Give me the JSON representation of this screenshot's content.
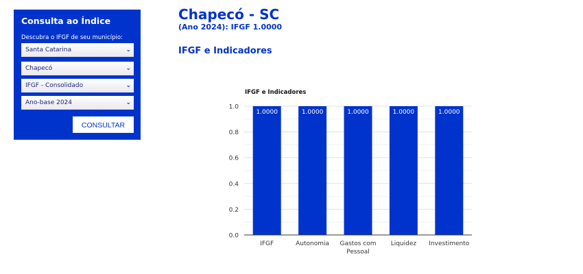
{
  "sidebar": {
    "title": "Consulta ao Índice",
    "label": "Descubra o IFGF de seu município:",
    "selects": [
      "Santa Catarina",
      "Chapecó",
      "IFGF - Consolidado",
      "Ano-base 2024"
    ],
    "button": "CONSULTAR"
  },
  "main": {
    "title": "Chapecó - SC",
    "subtitle": "(Ano 2024): IFGF 1.0000",
    "section": "IFGF e Indicadores"
  },
  "colors": {
    "brand": "#0033cc"
  },
  "chart_data": {
    "type": "bar",
    "title": "IFGF e Indicadores",
    "categories": [
      "IFGF",
      "Autonomia",
      "Gastos com Pessoal",
      "Liquidez",
      "Investimento"
    ],
    "values": [
      1.0,
      1.0,
      1.0,
      1.0,
      1.0
    ],
    "data_labels": [
      "1.0000",
      "1.0000",
      "1.0000",
      "1.0000",
      "1.0000"
    ],
    "ylim": [
      0,
      1
    ],
    "yticks": [
      "0.0",
      "0.2",
      "0.4",
      "0.6",
      "0.8",
      "1.0"
    ],
    "grid": true,
    "color": "#0033cc"
  }
}
